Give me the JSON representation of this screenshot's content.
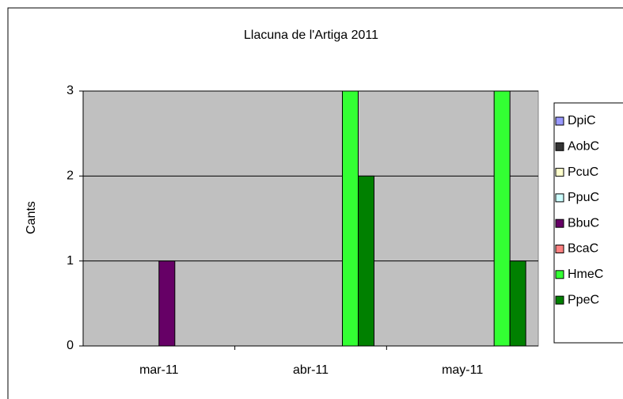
{
  "chart_data": {
    "type": "bar",
    "title": "Llacuna de l'Artiga 2011",
    "y_label": "Cants",
    "categories": [
      "mar-11",
      "abr-11",
      "may-11"
    ],
    "series": [
      {
        "name": "DpiC",
        "color": "#9999ff",
        "values": [
          0,
          0,
          0
        ]
      },
      {
        "name": "AobC",
        "color": "#333333",
        "values": [
          0,
          0,
          0
        ]
      },
      {
        "name": "PcuC",
        "color": "#ffffcc",
        "values": [
          0,
          0,
          0
        ]
      },
      {
        "name": "PpuC",
        "color": "#ccffff",
        "values": [
          0,
          0,
          0
        ]
      },
      {
        "name": "BbuC",
        "color": "#660066",
        "values": [
          1,
          0,
          0
        ]
      },
      {
        "name": "BcaC",
        "color": "#ff8080",
        "values": [
          0,
          0,
          0
        ]
      },
      {
        "name": "HmeC",
        "color": "#33ff33",
        "values": [
          0,
          3,
          3
        ]
      },
      {
        "name": "PpeC",
        "color": "#008000",
        "values": [
          0,
          2,
          1
        ]
      }
    ],
    "ylim": [
      0,
      3
    ],
    "yticks": [
      0,
      1,
      2,
      3
    ],
    "grid": true,
    "legend": "right"
  }
}
